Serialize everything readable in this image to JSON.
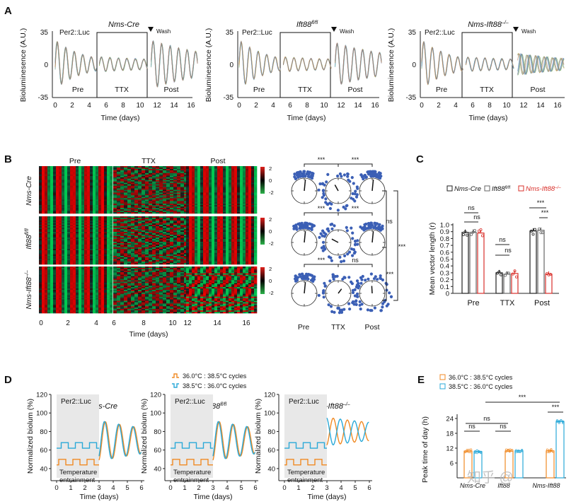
{
  "panel_letters": [
    "A",
    "B",
    "C",
    "D",
    "E"
  ],
  "panel_a": {
    "genotypes": [
      "Nms-Cre",
      "Ift88",
      "Nms-Ift88"
    ],
    "genotype_superscripts": [
      "",
      "fl/fl",
      "–/–"
    ],
    "reporter": "Per2::Luc",
    "wash_label": "Wash",
    "phase_labels": [
      "Pre",
      "TTX",
      "Post"
    ],
    "ylabel": "Bioluminesence (A.U.)",
    "xlabel": "Time (days)",
    "yticks": [
      "35",
      "0",
      "-35"
    ],
    "xticks": [
      "0",
      "2",
      "4",
      "6",
      "8",
      "10",
      "12",
      "14",
      "16"
    ]
  },
  "panel_b": {
    "phase_labels": [
      "Pre",
      "TTX",
      "Post"
    ],
    "genotypes": [
      "Nms-Cre",
      "Ift88",
      "Nms-Ift88"
    ],
    "genotype_superscripts": [
      "",
      "fl/fl",
      "–/–"
    ],
    "scale_ticks": [
      "2",
      "0",
      "-2"
    ],
    "xticks": [
      "0",
      "2",
      "4",
      "6",
      "8",
      "10",
      "12",
      "14",
      "16"
    ],
    "xlabel": "Time (days)",
    "rose_labels": [
      "Pre",
      "TTX",
      "Post"
    ],
    "sig": [
      "***",
      "***",
      "***",
      "***",
      "***",
      "ns",
      "ns",
      "***",
      "***"
    ]
  },
  "panel_c": {
    "legend": [
      "Nms-Cre",
      "Ift88",
      "Nms-Ift88"
    ],
    "legend_superscripts": [
      "",
      "fl/fl",
      "–/–"
    ],
    "legend_colors": [
      "#222222",
      "#666666",
      "#d9302b"
    ],
    "ylabel": "Mean vector length (r)",
    "yticks": [
      "0",
      "0.1",
      "0.2",
      "0.3",
      "0.4",
      "0.5",
      "0.6",
      "0.7",
      "0.8",
      "0.9",
      "1.0"
    ],
    "sig": [
      "ns",
      "ns",
      "ns",
      "ns",
      "***",
      "***"
    ]
  },
  "panel_d": {
    "legend": [
      "36.0°C : 38.5°C cycles",
      "38.5°C : 36.0°C cycles"
    ],
    "legend_colors": [
      "#f08a24",
      "#2aa9d8"
    ],
    "titles": [
      "Nms-Cre",
      "Ift88",
      "Nms-Ift88"
    ],
    "title_superscripts": [
      "",
      "fl/fl",
      "–/–"
    ],
    "reporter": "Per2::Luc",
    "entrain_label": [
      "Temperature",
      "entrainment"
    ],
    "ylabel": "Normalized biolum (%)",
    "xlabel": "Time (days)",
    "yticks": [
      "40",
      "60",
      "80",
      "100",
      "120"
    ],
    "xticks": [
      "0",
      "1",
      "2",
      "3",
      "4",
      "5",
      "6"
    ]
  },
  "panel_e": {
    "legend": [
      "36.0°C : 38.5°C cycles",
      "38.5°C : 36.0°C cycles"
    ],
    "legend_colors": [
      "#f08a24",
      "#2aa9d8"
    ],
    "ylabel": "Peak time of day (h)",
    "yticks": [
      "6",
      "12",
      "18",
      "24"
    ],
    "xticklabels": [
      "Nms-Cre",
      "Ift88",
      "Nms-Ift88"
    ],
    "sig": [
      "ns",
      "ns",
      "ns",
      "***",
      "***"
    ]
  },
  "watermark": "知乎 @",
  "chart_data": [
    {
      "type": "bar",
      "title": "",
      "categories": [
        "Pre",
        "TTX",
        "Post"
      ],
      "ylabel": "Mean vector length (r)",
      "ylim": [
        0,
        1.0
      ],
      "series": [
        {
          "name": "Nms-Cre",
          "values": [
            0.89,
            0.3,
            0.91
          ]
        },
        {
          "name": "Ift88 fl/fl",
          "values": [
            0.89,
            0.28,
            0.92
          ]
        },
        {
          "name": "Nms-Ift88 –/–",
          "values": [
            0.88,
            0.29,
            0.28
          ]
        }
      ]
    },
    {
      "type": "bar",
      "title": "",
      "categories": [
        "Nms-Cre",
        "Ift88 fl/fl",
        "Nms-Ift88 –/–"
      ],
      "ylabel": "Peak time of day (h)",
      "ylim": [
        0,
        24
      ],
      "series": [
        {
          "name": "36.0°C : 38.5°C cycles",
          "values": [
            10.8,
            10.8,
            10.9
          ]
        },
        {
          "name": "38.5°C : 36.0°C cycles",
          "values": [
            10.6,
            10.9,
            22.8
          ]
        }
      ]
    },
    {
      "type": "line",
      "title": "",
      "xlabel": "Time (days)",
      "ylabel": "Normalized biolum (%)",
      "xlim": [
        0,
        6
      ],
      "ylim": [
        30,
        120
      ],
      "series": [
        {
          "name": "36.0°C : 38.5°C cycles",
          "values": [
            92,
            55,
            88,
            52,
            80,
            50
          ]
        },
        {
          "name": "38.5°C : 36.0°C cycles",
          "values": [
            96,
            50,
            90,
            55,
            84,
            52
          ]
        }
      ]
    }
  ]
}
